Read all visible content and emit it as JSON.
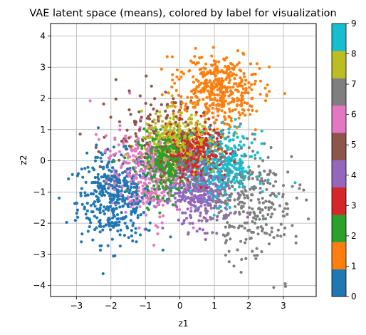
{
  "chart_data": {
    "type": "scatter",
    "title": "VAE latent space (means), colored by label for visualization",
    "xlabel": "z1",
    "ylabel": "z2",
    "xlim": [
      -3.75,
      3.95
    ],
    "ylim": [
      -4.35,
      4.4
    ],
    "xticks": [
      -3,
      -2,
      -1,
      0,
      1,
      2,
      3
    ],
    "yticks": [
      -4,
      -3,
      -2,
      -1,
      0,
      1,
      2,
      3,
      4
    ],
    "grid": true,
    "colormap": "tab10",
    "colorbar": {
      "ticks": [
        0,
        1,
        2,
        3,
        4,
        5,
        6,
        7,
        8,
        9
      ],
      "colors": [
        "#1f77b4",
        "#ff7f0e",
        "#2ca02c",
        "#d62728",
        "#9467bd",
        "#8c564b",
        "#e377c2",
        "#7f7f7f",
        "#bcbd22",
        "#17becf"
      ]
    },
    "clusters": [
      {
        "label": 0,
        "center": [
          -1.9,
          -1.2
        ],
        "spread": [
          0.55,
          0.7
        ],
        "rotation": 0.1,
        "count": 420
      },
      {
        "label": 1,
        "center": [
          1.1,
          2.3
        ],
        "spread": [
          0.6,
          0.55
        ],
        "rotation": -0.3,
        "count": 420
      },
      {
        "label": 2,
        "center": [
          -0.4,
          -0.1
        ],
        "spread": [
          0.4,
          0.5
        ],
        "rotation": 0.0,
        "count": 380
      },
      {
        "label": 3,
        "center": [
          0.4,
          0.2
        ],
        "spread": [
          0.4,
          0.45
        ],
        "rotation": 0.2,
        "count": 330
      },
      {
        "label": 4,
        "center": [
          0.5,
          -0.9
        ],
        "spread": [
          0.4,
          0.6
        ],
        "rotation": 0.3,
        "count": 340
      },
      {
        "label": 5,
        "center": [
          -0.6,
          0.9
        ],
        "spread": [
          0.75,
          0.7
        ],
        "rotation": -0.4,
        "count": 160
      },
      {
        "label": 6,
        "center": [
          -1.1,
          -0.5
        ],
        "spread": [
          0.5,
          0.75
        ],
        "rotation": 0.2,
        "count": 320
      },
      {
        "label": 7,
        "center": [
          1.9,
          -1.1
        ],
        "spread": [
          0.65,
          1.0
        ],
        "rotation": 0.25,
        "count": 330
      },
      {
        "label": 8,
        "center": [
          0.0,
          0.6
        ],
        "spread": [
          0.55,
          0.45
        ],
        "rotation": 0.0,
        "count": 340
      },
      {
        "label": 9,
        "center": [
          1.2,
          -0.2
        ],
        "spread": [
          0.5,
          0.55
        ],
        "rotation": 0.0,
        "count": 360
      }
    ]
  }
}
